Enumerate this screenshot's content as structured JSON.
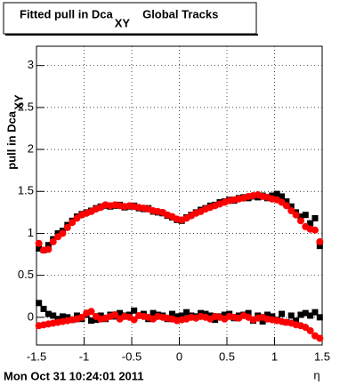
{
  "chart_data": {
    "type": "scatter",
    "title": "Fitted pull in Dca",
    "title_subscript": "XY",
    "title_suffix": "Global Tracks",
    "y_label": "pull in Dca",
    "y_label_subscript": "XY",
    "x_label": "η",
    "footer": "Mon Oct 31 10:24:01 2011",
    "xlim": [
      -1.5,
      1.5
    ],
    "xticks": [
      -1.5,
      -1,
      -0.5,
      0,
      0.5,
      1,
      1.5
    ],
    "ylim": [
      -0.33,
      3.23
    ],
    "yticks": [
      0,
      0.5,
      1,
      1.5,
      2,
      2.5,
      3
    ],
    "grid": true,
    "x": [
      -1.475,
      -1.425,
      -1.375,
      -1.325,
      -1.275,
      -1.225,
      -1.175,
      -1.125,
      -1.075,
      -1.025,
      -0.975,
      -0.925,
      -0.875,
      -0.825,
      -0.775,
      -0.725,
      -0.675,
      -0.625,
      -0.575,
      -0.525,
      -0.475,
      -0.425,
      -0.375,
      -0.325,
      -0.275,
      -0.225,
      -0.175,
      -0.125,
      -0.075,
      -0.025,
      0.025,
      0.075,
      0.125,
      0.175,
      0.225,
      0.275,
      0.325,
      0.375,
      0.425,
      0.475,
      0.525,
      0.575,
      0.625,
      0.675,
      0.725,
      0.775,
      0.825,
      0.875,
      0.925,
      0.975,
      1.025,
      1.075,
      1.125,
      1.175,
      1.225,
      1.275,
      1.325,
      1.375,
      1.425,
      1.475
    ],
    "series": [
      {
        "color": "#000000",
        "marker": "square",
        "values": [
          0.82,
          0.8,
          0.86,
          0.93,
          1.0,
          1.03,
          1.1,
          1.15,
          1.2,
          1.23,
          1.25,
          1.27,
          1.3,
          1.32,
          1.33,
          1.32,
          1.33,
          1.34,
          1.31,
          1.32,
          1.33,
          1.3,
          1.29,
          1.3,
          1.26,
          1.25,
          1.24,
          1.21,
          1.19,
          1.16,
          1.15,
          1.19,
          1.22,
          1.25,
          1.28,
          1.3,
          1.33,
          1.34,
          1.37,
          1.38,
          1.4,
          1.39,
          1.42,
          1.43,
          1.42,
          1.44,
          1.43,
          1.45,
          1.42,
          1.45,
          1.47,
          1.44,
          1.38,
          1.32,
          1.25,
          1.2,
          1.22,
          1.12,
          1.18,
          0.85
        ]
      },
      {
        "color": "#ff0000",
        "marker": "circle",
        "values": [
          0.88,
          0.8,
          0.81,
          0.9,
          0.96,
          1.0,
          1.07,
          1.13,
          1.18,
          1.22,
          1.24,
          1.26,
          1.29,
          1.31,
          1.34,
          1.33,
          1.34,
          1.33,
          1.32,
          1.33,
          1.32,
          1.31,
          1.3,
          1.29,
          1.27,
          1.26,
          1.25,
          1.22,
          1.2,
          1.17,
          1.16,
          1.18,
          1.21,
          1.24,
          1.26,
          1.29,
          1.31,
          1.33,
          1.35,
          1.37,
          1.39,
          1.4,
          1.41,
          1.42,
          1.44,
          1.45,
          1.46,
          1.44,
          1.43,
          1.41,
          1.4,
          1.37,
          1.33,
          1.27,
          1.22,
          1.15,
          1.08,
          1.05,
          1.04,
          0.9
        ]
      },
      {
        "color": "#000000",
        "marker": "square",
        "values": [
          0.17,
          0.1,
          0.04,
          0.02,
          -0.02,
          0.01,
          0.0,
          -0.03,
          0.02,
          -0.02,
          0.03,
          -0.04,
          -0.03,
          0.02,
          -0.02,
          0.03,
          0.01,
          0.05,
          0.02,
          0.03,
          0.08,
          0.02,
          0.04,
          -0.02,
          0.05,
          0.03,
          0.02,
          -0.02,
          0.04,
          0.01,
          0.02,
          0.06,
          0.02,
          0.01,
          0.05,
          0.04,
          0.02,
          -0.03,
          0.01,
          0.03,
          0.04,
          -0.01,
          0.02,
          0.03,
          0.05,
          -0.04,
          0.02,
          -0.05,
          0.03,
          0.01,
          -0.03,
          0.04,
          -0.06,
          0.02,
          -0.04,
          0.03,
          0.05,
          0.02,
          0.06,
          0.0
        ]
      },
      {
        "color": "#ff0000",
        "marker": "circle",
        "values": [
          -0.1,
          -0.09,
          -0.08,
          -0.07,
          -0.06,
          -0.05,
          -0.04,
          -0.03,
          -0.02,
          0.0,
          0.05,
          0.07,
          0.01,
          -0.02,
          -0.01,
          0.01,
          0.03,
          -0.02,
          0.01,
          0.0,
          -0.03,
          0.02,
          0.01,
          0.0,
          -0.02,
          0.01,
          0.0,
          -0.01,
          -0.02,
          -0.04,
          -0.03,
          -0.02,
          0.0,
          -0.01,
          0.01,
          0.0,
          -0.02,
          0.01,
          0.0,
          -0.02,
          0.01,
          0.0,
          -0.01,
          0.02,
          0.0,
          -0.03,
          -0.01,
          0.0,
          -0.02,
          -0.03,
          -0.04,
          -0.05,
          -0.06,
          -0.07,
          -0.09,
          -0.1,
          -0.12,
          -0.16,
          -0.22,
          -0.25
        ]
      }
    ]
  }
}
